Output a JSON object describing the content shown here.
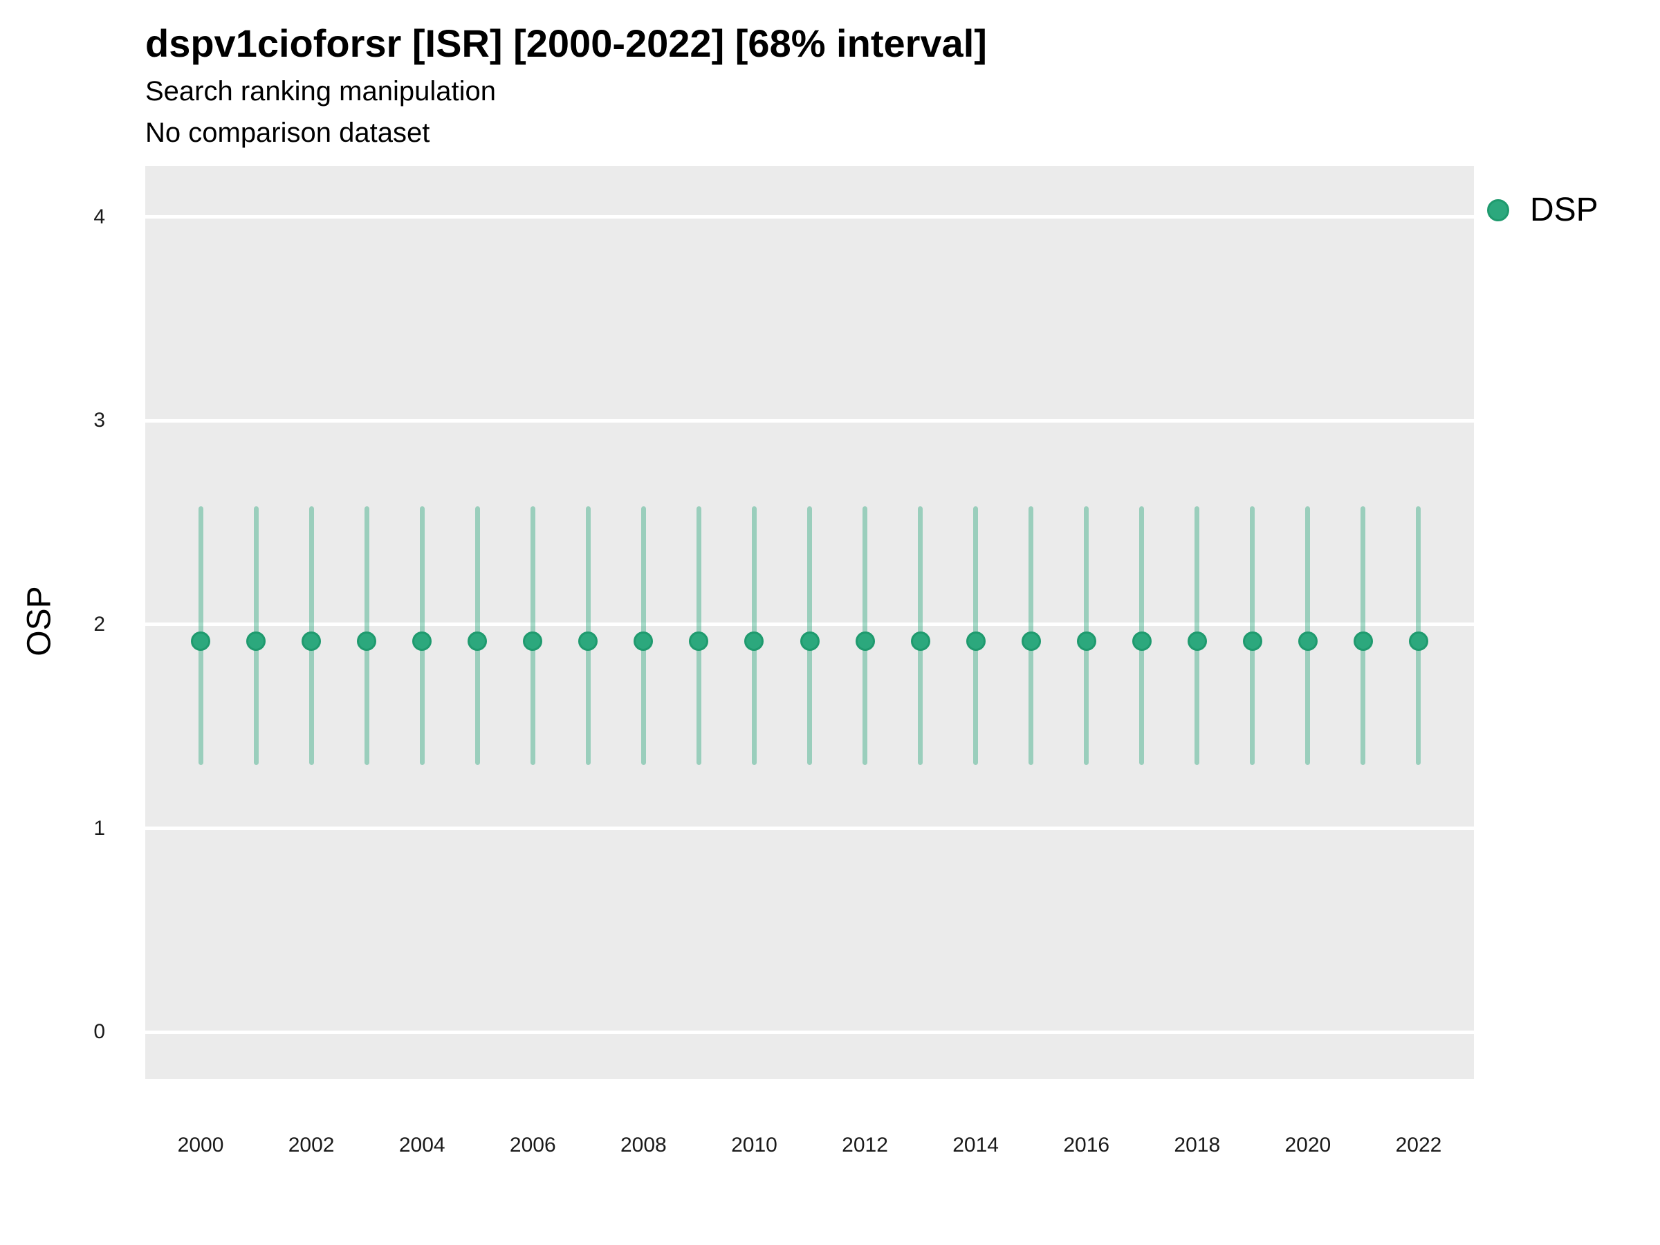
{
  "header": {
    "title": "dspv1cioforsr [ISR] [2000-2022] [68% interval]",
    "subtitle_line1": "Search ranking manipulation",
    "subtitle_line2": "No comparison dataset"
  },
  "legend": {
    "position": "top-right",
    "items": [
      {
        "label": "DSP",
        "marker": "circle"
      }
    ]
  },
  "colors": {
    "point_fill": "#2CA87D",
    "point_ring": "#1F9A6E",
    "interval_line": "rgba(44,168,125,0.42)",
    "panel_background": "#EBEBEB",
    "gridline": "#FFFFFF",
    "title_text": "#000000",
    "tick_text": "#1a1a1a"
  },
  "chart_data": {
    "type": "scatter",
    "title": "dspv1cioforsr [ISR] [2000-2022] [68% interval]",
    "subtitle": "Search ranking manipulation\nNo comparison dataset",
    "xlabel": "",
    "ylabel": "OSP",
    "interval_level": "68%",
    "x": [
      2000,
      2001,
      2002,
      2003,
      2004,
      2005,
      2006,
      2007,
      2008,
      2009,
      2010,
      2011,
      2012,
      2013,
      2014,
      2015,
      2016,
      2017,
      2018,
      2019,
      2020,
      2021,
      2022
    ],
    "series": [
      {
        "name": "DSP",
        "point_estimates": [
          1.92,
          1.92,
          1.92,
          1.92,
          1.92,
          1.92,
          1.92,
          1.92,
          1.92,
          1.92,
          1.92,
          1.92,
          1.92,
          1.92,
          1.92,
          1.92,
          1.92,
          1.92,
          1.92,
          1.92,
          1.92,
          1.92,
          1.92
        ],
        "interval_lower": [
          1.31,
          1.31,
          1.31,
          1.31,
          1.31,
          1.31,
          1.31,
          1.31,
          1.31,
          1.31,
          1.31,
          1.31,
          1.31,
          1.31,
          1.31,
          1.31,
          1.31,
          1.31,
          1.31,
          1.31,
          1.31,
          1.31,
          1.31
        ],
        "interval_upper": [
          2.58,
          2.58,
          2.58,
          2.58,
          2.58,
          2.58,
          2.58,
          2.58,
          2.58,
          2.58,
          2.58,
          2.58,
          2.58,
          2.58,
          2.58,
          2.58,
          2.58,
          2.58,
          2.58,
          2.58,
          2.58,
          2.58,
          2.58
        ]
      }
    ],
    "xticks": [
      2000,
      2002,
      2004,
      2006,
      2008,
      2010,
      2012,
      2014,
      2016,
      2018,
      2020,
      2022
    ],
    "yticks": [
      0,
      1,
      2,
      3,
      4
    ],
    "xlim": [
      1999,
      2023
    ],
    "ylim": [
      -0.23,
      4.25
    ],
    "grid": "horizontal major gridlines only, white on gray panel",
    "legend_position": "top-right"
  }
}
